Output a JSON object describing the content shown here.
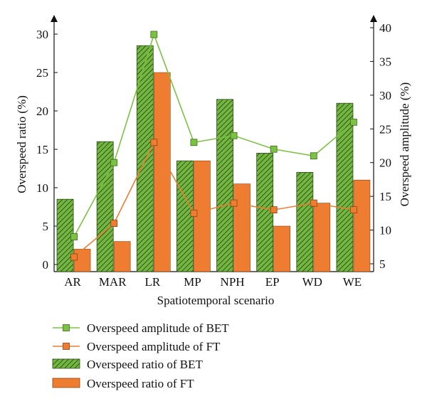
{
  "chart_data": {
    "type": "bar",
    "xlabel": "Spatiotemporal scenario",
    "ylabel_left": "Overspeed ratio (%)",
    "ylabel_right": "Overspeed amplitude (%)",
    "categories": [
      "AR",
      "MAR",
      "LR",
      "MP",
      "NPH",
      "EP",
      "WD",
      "WE"
    ],
    "ylim_left": [
      0,
      31
    ],
    "ylim_right": [
      5,
      40
    ],
    "yticks_left": [
      0,
      5,
      10,
      15,
      20,
      25,
      30
    ],
    "yticks_right": [
      5,
      10,
      15,
      20,
      25,
      30,
      35,
      40
    ],
    "bar_series": [
      {
        "name": "Overspeed ratio of BET",
        "axis": "left",
        "pattern": "green-hatch",
        "color": "#6db33f",
        "values": [
          8.5,
          16,
          28.5,
          13.5,
          21.5,
          14.5,
          12,
          21
        ]
      },
      {
        "name": "Overspeed ratio of FT",
        "axis": "left",
        "pattern": "solid",
        "color": "#ee7d31",
        "values": [
          2,
          3,
          25,
          13.5,
          10.5,
          5,
          8,
          11
        ]
      }
    ],
    "line_series": [
      {
        "name": "Overspeed amplitude of BET",
        "axis": "right",
        "color": "#7cc242",
        "marker": "square",
        "values": [
          9,
          20,
          39,
          23,
          24,
          22,
          21,
          26
        ]
      },
      {
        "name": "Overspeed amplitude of FT",
        "axis": "right",
        "color": "#ee7d31",
        "marker": "square",
        "values": [
          6,
          11,
          23,
          12.5,
          14,
          13,
          14,
          13
        ]
      }
    ],
    "legend": {
      "position": "bottom",
      "entries": [
        "Overspeed amplitude of BET",
        "Overspeed amplitude of FT",
        "Overspeed ratio of BET",
        "Overspeed ratio of FT"
      ]
    },
    "grid": false
  }
}
